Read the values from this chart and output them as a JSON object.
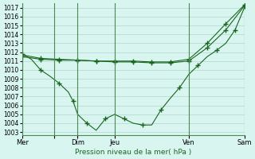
{
  "title": "Pression niveau de la mer( hPa )",
  "background_color": "#d8f5f0",
  "grid_color": "#b0d8d0",
  "line_color": "#1a6620",
  "ylim": [
    1002.7,
    1017.5
  ],
  "yticks": [
    1003,
    1004,
    1005,
    1006,
    1007,
    1008,
    1009,
    1010,
    1011,
    1012,
    1013,
    1014,
    1015,
    1016,
    1017
  ],
  "xlim": [
    0,
    24
  ],
  "day_positions": [
    0,
    3.5,
    6,
    10,
    18,
    24
  ],
  "day_labels": [
    "Mer",
    "",
    "Dim",
    "Jeu",
    "Ven",
    "Sam"
  ],
  "vline_positions": [
    0,
    3.5,
    6,
    10,
    18,
    24
  ],
  "line1_x": [
    0,
    1,
    2,
    3,
    4,
    5,
    5.5,
    6,
    7,
    8,
    9,
    10,
    11,
    12,
    13,
    14,
    15,
    16,
    17,
    18,
    19,
    20,
    21,
    22,
    23,
    24
  ],
  "line1_y": [
    1011.8,
    1011.2,
    1010.0,
    1009.3,
    1008.5,
    1007.5,
    1006.5,
    1005.0,
    1004.0,
    1003.2,
    1004.5,
    1005.0,
    1004.5,
    1004.0,
    1003.8,
    1003.8,
    1005.5,
    1006.8,
    1008.0,
    1009.5,
    1010.5,
    1011.5,
    1012.2,
    1013.0,
    1014.5,
    1017.0
  ],
  "line1_markers": [
    0,
    2,
    4,
    6,
    8,
    10,
    12,
    14,
    16,
    18,
    20,
    22,
    24
  ],
  "line2_x": [
    0,
    2,
    4,
    6,
    8,
    10,
    12,
    14,
    16,
    18,
    20,
    22,
    24
  ],
  "line2_y": [
    1011.5,
    1011.2,
    1011.1,
    1011.1,
    1011.0,
    1010.9,
    1010.9,
    1010.8,
    1010.8,
    1011.0,
    1012.5,
    1014.5,
    1017.2
  ],
  "line3_x": [
    0,
    2,
    4,
    6,
    8,
    10,
    12,
    14,
    16,
    18,
    20,
    22,
    24
  ],
  "line3_y": [
    1011.7,
    1011.3,
    1011.2,
    1011.1,
    1011.0,
    1011.0,
    1011.0,
    1010.9,
    1010.9,
    1011.2,
    1013.0,
    1015.2,
    1017.3
  ]
}
